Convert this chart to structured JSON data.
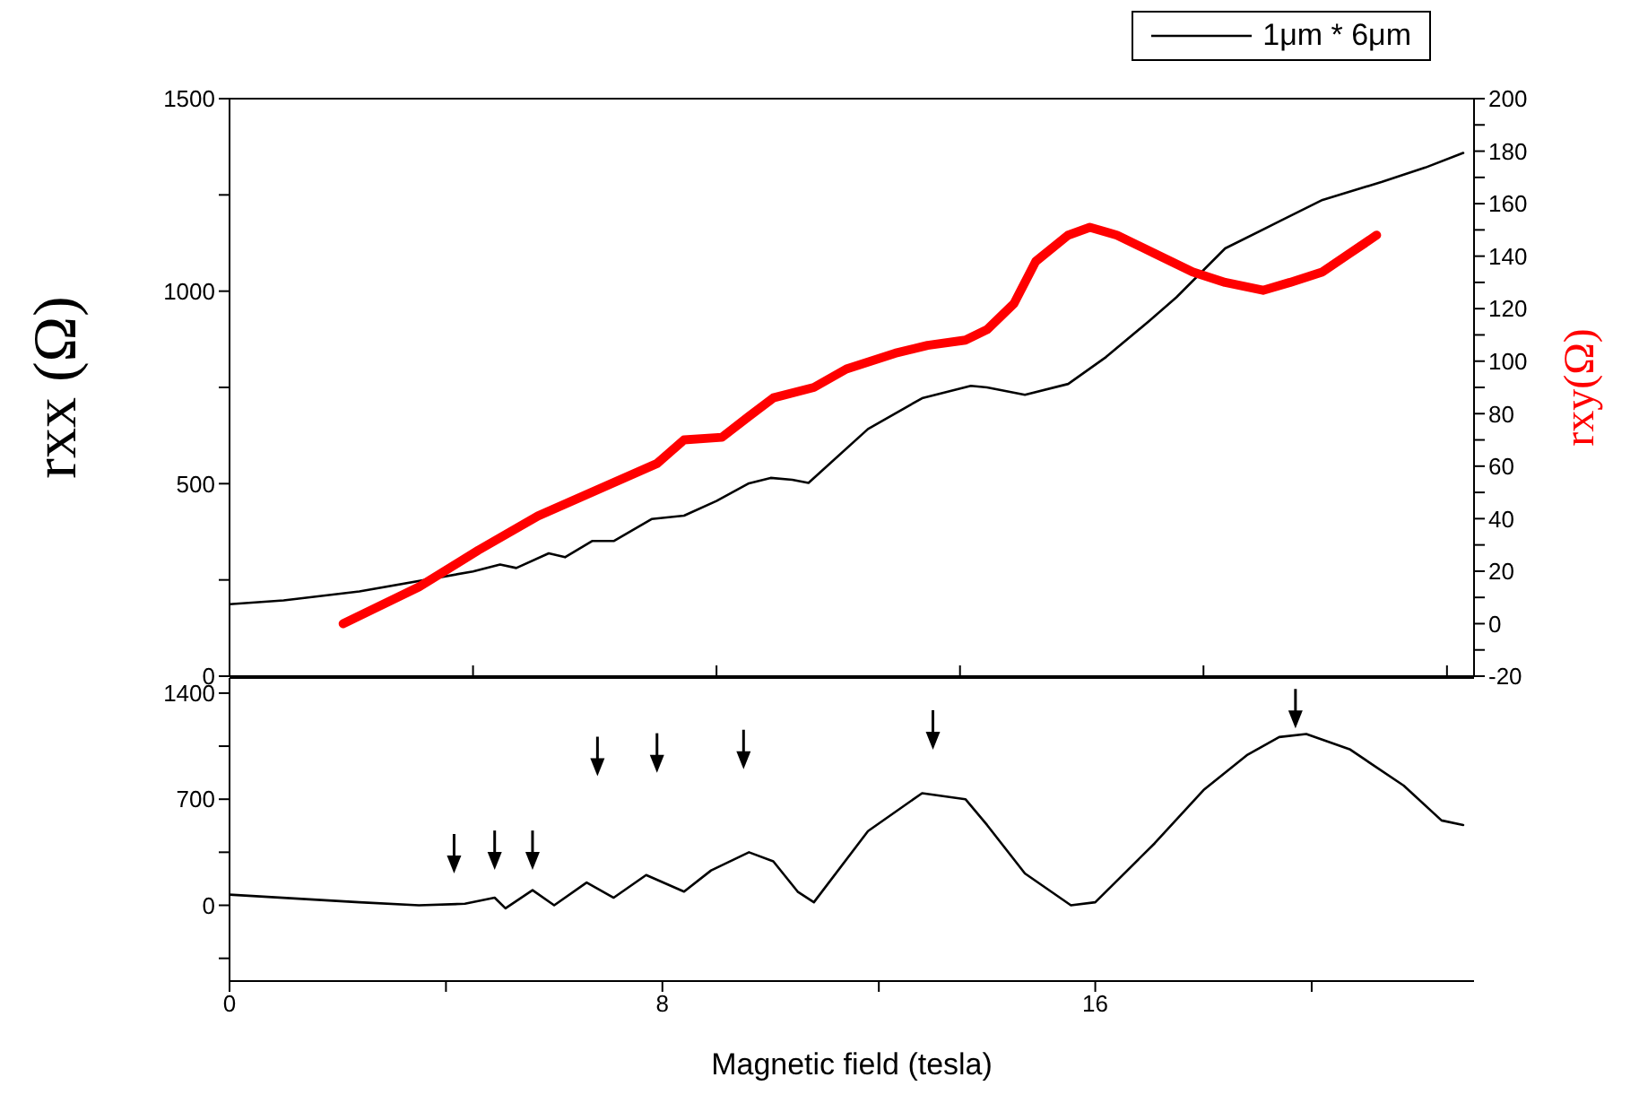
{
  "chart_data": [
    {
      "type": "line",
      "xlim": [
        0,
        23
      ],
      "xticks": [
        {
          "value": 4.5,
          "label": null
        },
        {
          "value": 9,
          "label": null
        },
        {
          "value": 13.5,
          "label": null
        },
        {
          "value": 18,
          "label": null
        },
        {
          "value": 22.5,
          "label": null
        }
      ],
      "tick_labels": "y",
      "ylim": [
        0,
        1500
      ],
      "yticks": [
        0,
        {
          "value": 250,
          "label": null
        },
        500,
        {
          "value": 750,
          "label": null
        },
        1000,
        {
          "value": 1250,
          "label": null
        },
        1500
      ],
      "y2lim": [
        -20,
        200
      ],
      "y2ticks": [
        -20,
        {
          "value": -10,
          "label": null
        },
        0,
        {
          "value": 10,
          "label": null
        },
        20,
        {
          "value": 30,
          "label": null
        },
        40,
        {
          "value": 50,
          "label": null
        },
        60,
        {
          "value": 70,
          "label": null
        },
        80,
        {
          "value": 90,
          "label": null
        },
        100,
        {
          "value": 110,
          "label": null
        },
        120,
        {
          "value": 130,
          "label": null
        },
        140,
        {
          "value": 150,
          "label": null
        },
        160,
        {
          "value": 170,
          "label": null
        },
        180,
        {
          "value": 190,
          "label": null
        },
        200
      ],
      "ylabel": "rxx (Ω)",
      "y2label": "rxy(Ω)",
      "legend": "top right",
      "series": [
        {
          "name": "1μm * 6μm",
          "color": "#000000",
          "x": [
            0,
            1.0,
            2.4,
            4.5,
            5.0,
            5.3,
            5.9,
            6.2,
            6.7,
            7.1,
            7.8,
            8.4,
            9.0,
            9.6,
            10.0,
            10.4,
            10.7,
            11.8,
            12.8,
            13.7,
            14.0,
            14.7,
            15.5,
            16.2,
            17.0,
            17.5,
            18.4,
            19.4,
            20.2,
            21.3,
            22.1,
            22.8
          ],
          "values": [
            187,
            197,
            220,
            272,
            290,
            281,
            319,
            309,
            351,
            351,
            408,
            417,
            455,
            501,
            515,
            510,
            502,
            642,
            722,
            754,
            750,
            731,
            759,
            829,
            923,
            984,
            1111,
            1181,
            1237,
            1284,
            1321,
            1359
          ]
        },
        {
          "color": "#ff0000",
          "axis": "y2",
          "x": [
            2.1,
            3.5,
            4.6,
            5.7,
            6.8,
            7.9,
            8.4,
            9.1,
            9.6,
            10.05,
            10.8,
            11.4,
            12.3,
            12.9,
            13.6,
            14.0,
            14.5,
            14.9,
            15.5,
            15.9,
            16.4,
            17.1,
            17.8,
            18.4,
            19.1,
            19.6,
            20.2,
            20.7,
            21.2
          ],
          "values": [
            0,
            14,
            28,
            41,
            51,
            61,
            70,
            71,
            79,
            86,
            90,
            97,
            103,
            106,
            108,
            112,
            122,
            138,
            148,
            151,
            148,
            141,
            134,
            130,
            127,
            130,
            134,
            141,
            148
          ]
        }
      ]
    },
    {
      "type": "line",
      "xlim": [
        0,
        23
      ],
      "xticks": [
        0,
        {
          "value": 4,
          "label": null
        },
        8,
        {
          "value": 12,
          "label": null
        },
        16,
        {
          "value": 20,
          "label": null
        }
      ],
      "ylim": [
        -500,
        1500
      ],
      "yticks": [
        {
          "value": -350,
          "label": null
        },
        0,
        {
          "value": 350,
          "label": null
        },
        700,
        {
          "value": 1050,
          "label": null
        },
        1400
      ],
      "xlabel": "Magnetic field (tesla)",
      "color": "#000000",
      "x": [
        0,
        2.4,
        3.5,
        4.35,
        4.9,
        5.1,
        5.6,
        6.0,
        6.6,
        7.1,
        7.7,
        8.4,
        8.9,
        9.6,
        10.05,
        10.5,
        10.8,
        11.8,
        12.8,
        13.6,
        14.0,
        14.7,
        15.55,
        16.0,
        17.1,
        18.0,
        18.8,
        19.4,
        19.9,
        20.7,
        21.7,
        22.4,
        22.8
      ],
      "values": [
        70,
        20,
        0,
        10,
        50,
        -20,
        100,
        0,
        150,
        50,
        200,
        90,
        230,
        350,
        290,
        90,
        20,
        490,
        740,
        700,
        530,
        210,
        0,
        20,
        410,
        760,
        990,
        1110,
        1130,
        1030,
        790,
        560,
        530
      ]
    }
  ]
}
